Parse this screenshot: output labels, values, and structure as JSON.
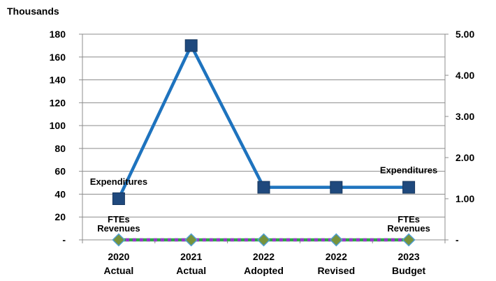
{
  "chart_data": {
    "type": "line",
    "title": "",
    "left_axis_unit": "Thousands",
    "categories": [
      [
        "2020",
        "Actual"
      ],
      [
        "2021",
        "Actual"
      ],
      [
        "2022",
        "Adopted"
      ],
      [
        "2022",
        "Revised"
      ],
      [
        "2023",
        "Budget"
      ]
    ],
    "y_left": {
      "ylim": [
        0,
        180
      ],
      "ticks": [
        0,
        20,
        40,
        60,
        80,
        100,
        120,
        140,
        160,
        180
      ],
      "tick_labels": [
        "-",
        "20",
        "40",
        "60",
        "80",
        "100",
        "120",
        "140",
        "160",
        "180"
      ]
    },
    "y_right": {
      "ylim": [
        0,
        5
      ],
      "ticks": [
        0,
        1,
        2,
        3,
        4,
        5
      ],
      "tick_labels": [
        "-",
        "1.00",
        "2.00",
        "3.00",
        "4.00",
        "5.00"
      ]
    },
    "grid": true,
    "series": [
      {
        "name": "Expenditures",
        "axis": "left",
        "values": [
          36,
          170,
          46,
          46,
          46
        ],
        "color": "#1E73BE",
        "marker": "square",
        "marker_color": "#1F497D"
      },
      {
        "name": "Revenues",
        "axis": "left",
        "values": [
          0,
          0,
          0,
          0,
          0
        ],
        "color": "#9933CC",
        "marker": "diamond",
        "marker_color": "#77933C"
      },
      {
        "name": "FTEs",
        "axis": "right",
        "values": [
          0,
          0,
          0,
          0,
          0
        ],
        "color": "#2EA845",
        "marker": "none"
      }
    ],
    "annotations": [
      {
        "text": "Expenditures",
        "series": "Expenditures",
        "category": 0
      },
      {
        "text": "Expenditures",
        "series": "Expenditures",
        "category": 4
      },
      {
        "text": "FTEs",
        "series": "FTEs",
        "category": 0
      },
      {
        "text": "FTEs",
        "series": "FTEs",
        "category": 4
      },
      {
        "text": "Revenues",
        "series": "Revenues",
        "category": 0
      },
      {
        "text": "Revenues",
        "series": "Revenues",
        "category": 4
      }
    ]
  }
}
